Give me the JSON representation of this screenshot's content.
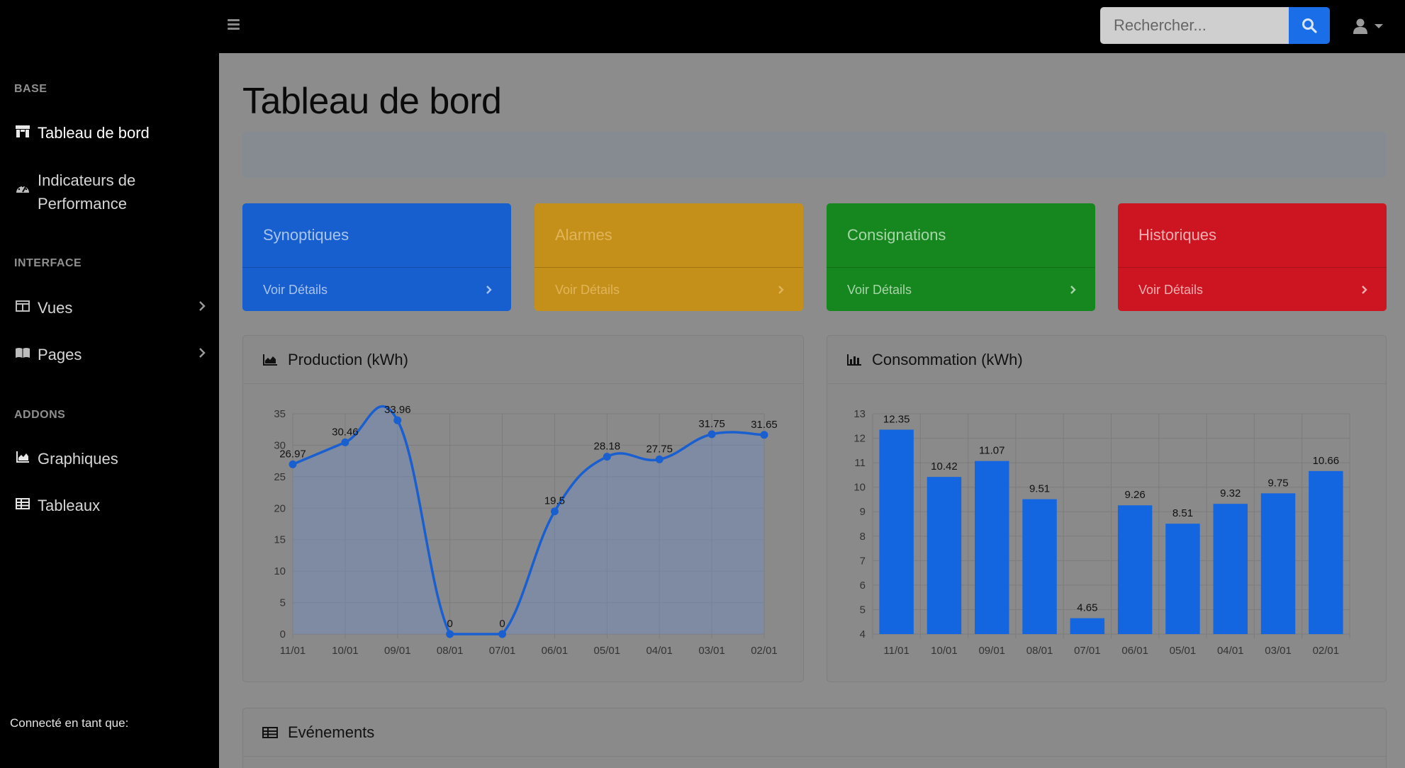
{
  "topbar": {
    "search_placeholder": "Rechercher..."
  },
  "sidebar": {
    "sections": [
      {
        "heading": "BASE"
      },
      {
        "heading": "INTERFACE"
      },
      {
        "heading": "ADDONS"
      }
    ],
    "items": [
      {
        "label": "Tableau de bord",
        "icon": "dashboard-icon"
      },
      {
        "label": "Indicateurs de Performance",
        "icon": "gauge-icon"
      },
      {
        "label": "Vues",
        "icon": "columns-icon"
      },
      {
        "label": "Pages",
        "icon": "book-icon"
      },
      {
        "label": "Graphiques",
        "icon": "area-chart-icon"
      },
      {
        "label": "Tableaux",
        "icon": "table-icon"
      }
    ],
    "footer": "Connecté en tant que:"
  },
  "main": {
    "title": "Tableau de bord",
    "cards": [
      {
        "title": "Synoptiques",
        "link": "Voir Détails",
        "color": "#175fcf"
      },
      {
        "title": "Alarmes",
        "link": "Voir Détails",
        "color": "#c4901a"
      },
      {
        "title": "Consignations",
        "link": "Voir Détails",
        "color": "#16861e"
      },
      {
        "title": "Historiques",
        "link": "Voir Détails",
        "color": "#cc1520"
      }
    ],
    "panels": {
      "production": {
        "title": "Production (kWh)",
        "icon": "area-chart-icon"
      },
      "consommation": {
        "title": "Consommation (kWh)",
        "icon": "bar-chart-icon"
      },
      "evenements": {
        "title": "Evénements",
        "icon": "table-icon"
      }
    }
  },
  "colors": {
    "accent": "#1a6fe8",
    "chart_line": "#1a5fd0",
    "bar": "#1466e0"
  },
  "chart_data": [
    {
      "type": "line",
      "title": "Production (kWh)",
      "categories": [
        "11/01",
        "10/01",
        "09/01",
        "08/01",
        "07/01",
        "06/01",
        "05/01",
        "04/01",
        "03/01",
        "02/01"
      ],
      "values": [
        26.97,
        30.46,
        33.96,
        0,
        0,
        19.5,
        28.18,
        27.75,
        31.75,
        31.65
      ],
      "ylim": [
        0,
        35
      ],
      "yticks": [
        0,
        5,
        10,
        15,
        20,
        25,
        30,
        35
      ],
      "grid": true,
      "filled": true
    },
    {
      "type": "bar",
      "title": "Consommation (kWh)",
      "categories": [
        "11/01",
        "10/01",
        "09/01",
        "08/01",
        "07/01",
        "06/01",
        "05/01",
        "04/01",
        "03/01",
        "02/01"
      ],
      "values": [
        12.35,
        10.42,
        11.07,
        9.51,
        4.65,
        9.26,
        8.51,
        9.32,
        9.75,
        10.66
      ],
      "ylim": [
        4,
        13
      ],
      "yticks": [
        4,
        5,
        6,
        7,
        8,
        9,
        10,
        11,
        12,
        13
      ],
      "grid": true
    }
  ]
}
